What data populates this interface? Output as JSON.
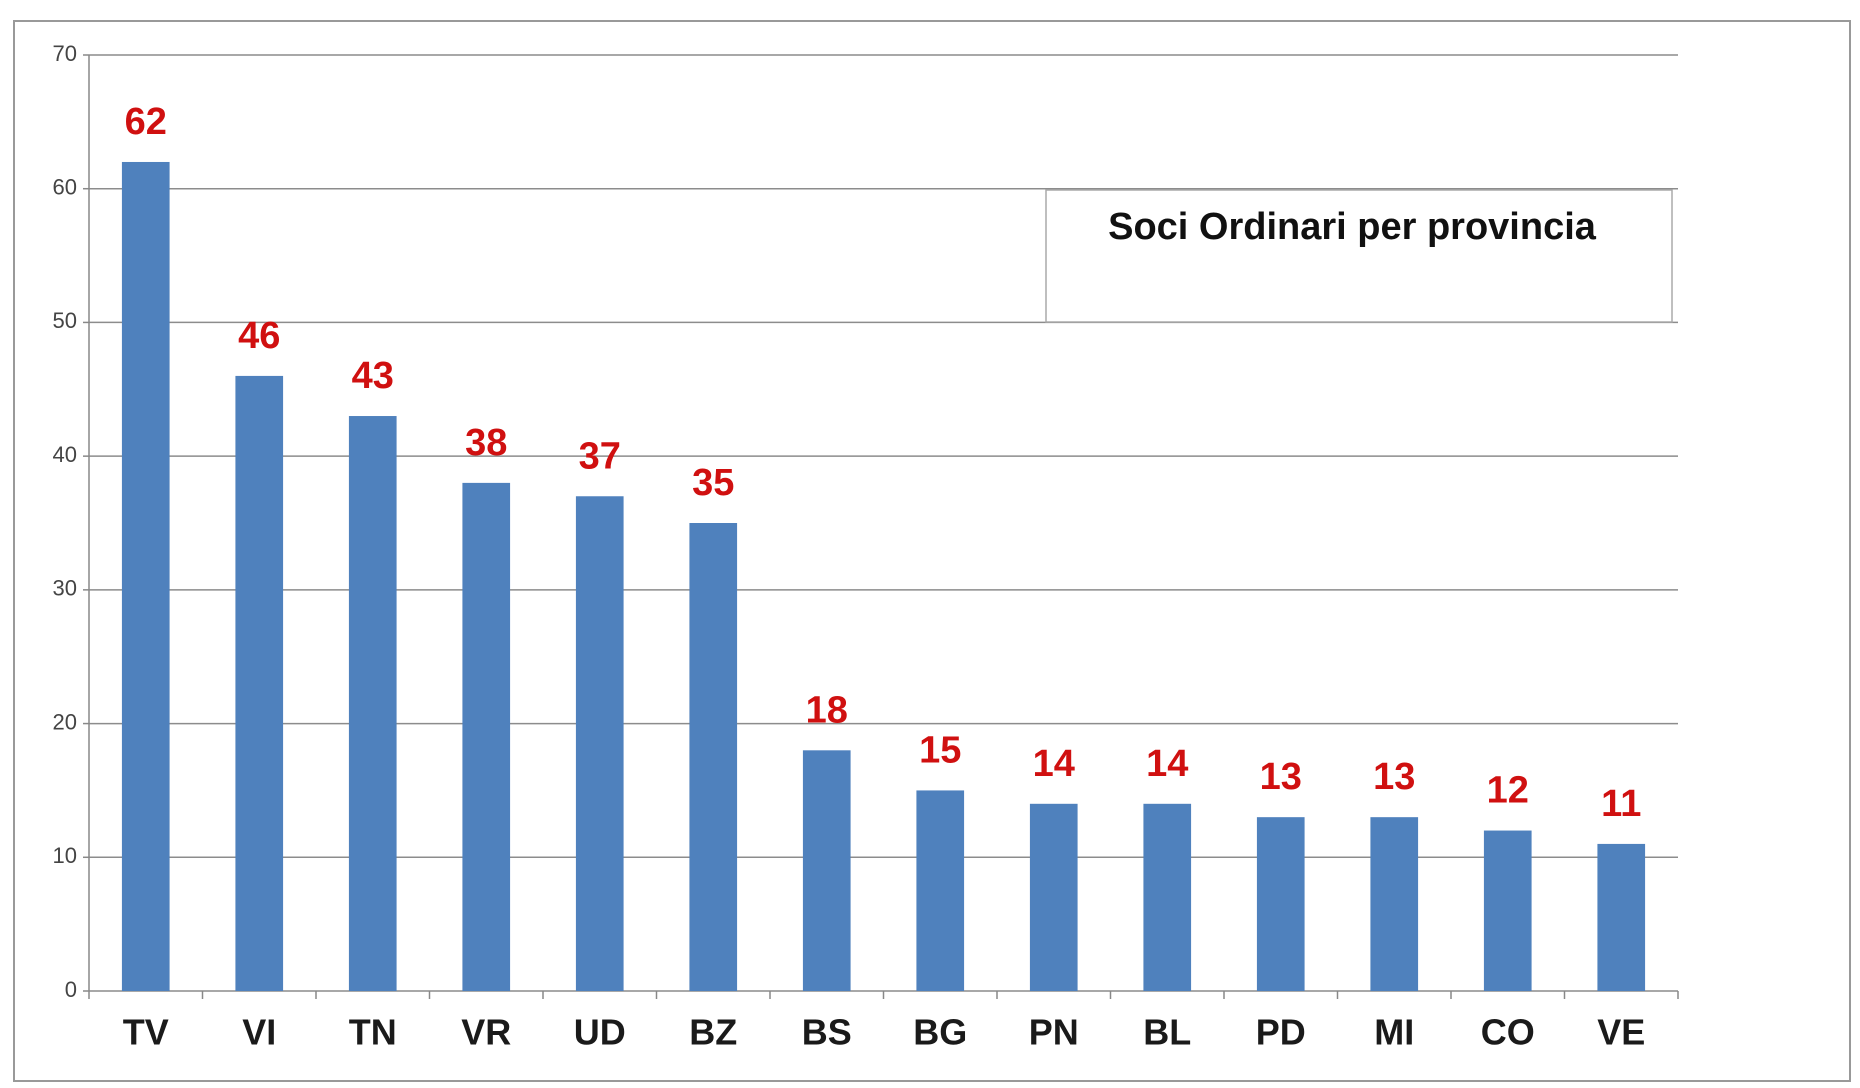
{
  "chart_data": {
    "type": "bar",
    "title": "Soci Ordinari per provincia",
    "categories": [
      "TV",
      "VI",
      "TN",
      "VR",
      "UD",
      "BZ",
      "BS",
      "BG",
      "PN",
      "BL",
      "PD",
      "MI",
      "CO",
      "VE"
    ],
    "values": [
      62,
      46,
      43,
      38,
      37,
      35,
      18,
      15,
      14,
      14,
      13,
      13,
      12,
      11
    ],
    "color": "#4f81bd",
    "label_color": "#d01010",
    "ylim": [
      0,
      70
    ],
    "yticks": [
      0,
      10,
      20,
      30,
      40,
      50,
      60,
      70
    ],
    "grid": true
  }
}
